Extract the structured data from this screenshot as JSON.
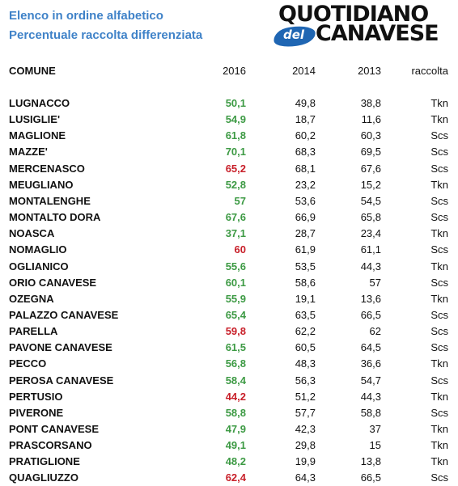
{
  "title": {
    "line1": "Elenco in ordine alfabetico",
    "line2": "Percentuale raccolta differenziata"
  },
  "logo": {
    "top": "QUOTIDIANO",
    "small": "del",
    "bottom": "CANAVESE"
  },
  "colors": {
    "title": "#3f82c8",
    "green": "#3d9a44",
    "red": "#c8202a",
    "logo_blob": "#1f66b3"
  },
  "headers": {
    "comune": "COMUNE",
    "y2016": "2016",
    "y2014": "2014",
    "y2013": "2013",
    "raccolta": "raccolta"
  },
  "rows": [
    {
      "comune": "LUGNACCO",
      "y2016": "50,1",
      "status": "green",
      "y2014": "49,8",
      "y2013": "38,8",
      "raccolta": "Tkn"
    },
    {
      "comune": "LUSIGLIE'",
      "y2016": "54,9",
      "status": "green",
      "y2014": "18,7",
      "y2013": "11,6",
      "raccolta": "Tkn"
    },
    {
      "comune": "MAGLIONE",
      "y2016": "61,8",
      "status": "green",
      "y2014": "60,2",
      "y2013": "60,3",
      "raccolta": "Scs"
    },
    {
      "comune": "MAZZE'",
      "y2016": "70,1",
      "status": "green",
      "y2014": "68,3",
      "y2013": "69,5",
      "raccolta": "Scs"
    },
    {
      "comune": "MERCENASCO",
      "y2016": "65,2",
      "status": "red",
      "y2014": "68,1",
      "y2013": "67,6",
      "raccolta": "Scs"
    },
    {
      "comune": "MEUGLIANO",
      "y2016": "52,8",
      "status": "green",
      "y2014": "23,2",
      "y2013": "15,2",
      "raccolta": "Tkn"
    },
    {
      "comune": "MONTALENGHE",
      "y2016": "57",
      "status": "green",
      "y2014": "53,6",
      "y2013": "54,5",
      "raccolta": "Scs"
    },
    {
      "comune": "MONTALTO DORA",
      "y2016": "67,6",
      "status": "green",
      "y2014": "66,9",
      "y2013": "65,8",
      "raccolta": "Scs"
    },
    {
      "comune": "NOASCA",
      "y2016": "37,1",
      "status": "green",
      "y2014": "28,7",
      "y2013": "23,4",
      "raccolta": "Tkn"
    },
    {
      "comune": "NOMAGLIO",
      "y2016": "60",
      "status": "red",
      "y2014": "61,9",
      "y2013": "61,1",
      "raccolta": "Scs"
    },
    {
      "comune": "OGLIANICO",
      "y2016": "55,6",
      "status": "green",
      "y2014": "53,5",
      "y2013": "44,3",
      "raccolta": "Tkn"
    },
    {
      "comune": "ORIO CANAVESE",
      "y2016": "60,1",
      "status": "green",
      "y2014": "58,6",
      "y2013": "57",
      "raccolta": "Scs"
    },
    {
      "comune": "OZEGNA",
      "y2016": "55,9",
      "status": "green",
      "y2014": "19,1",
      "y2013": "13,6",
      "raccolta": "Tkn"
    },
    {
      "comune": "PALAZZO CANAVESE",
      "y2016": "65,4",
      "status": "green",
      "y2014": "63,5",
      "y2013": "66,5",
      "raccolta": "Scs"
    },
    {
      "comune": "PARELLA",
      "y2016": "59,8",
      "status": "red",
      "y2014": "62,2",
      "y2013": "62",
      "raccolta": "Scs"
    },
    {
      "comune": "PAVONE CANAVESE",
      "y2016": "61,5",
      "status": "green",
      "y2014": "60,5",
      "y2013": "64,5",
      "raccolta": "Scs"
    },
    {
      "comune": "PECCO",
      "y2016": "56,8",
      "status": "green",
      "y2014": "48,3",
      "y2013": "36,6",
      "raccolta": "Tkn"
    },
    {
      "comune": "PEROSA CANAVESE",
      "y2016": "58,4",
      "status": "green",
      "y2014": "56,3",
      "y2013": "54,7",
      "raccolta": "Scs"
    },
    {
      "comune": "PERTUSIO",
      "y2016": "44,2",
      "status": "red",
      "y2014": "51,2",
      "y2013": "44,3",
      "raccolta": "Tkn"
    },
    {
      "comune": "PIVERONE",
      "y2016": "58,8",
      "status": "green",
      "y2014": "57,7",
      "y2013": "58,8",
      "raccolta": "Scs"
    },
    {
      "comune": "PONT CANAVESE",
      "y2016": "47,9",
      "status": "green",
      "y2014": "42,3",
      "y2013": "37",
      "raccolta": "Tkn"
    },
    {
      "comune": "PRASCORSANO",
      "y2016": "49,1",
      "status": "green",
      "y2014": "29,8",
      "y2013": "15",
      "raccolta": "Tkn"
    },
    {
      "comune": "PRATIGLIONE",
      "y2016": "48,2",
      "status": "green",
      "y2014": "19,9",
      "y2013": "13,8",
      "raccolta": "Tkn"
    },
    {
      "comune": "QUAGLIUZZO",
      "y2016": "62,4",
      "status": "red",
      "y2014": "64,3",
      "y2013": "66,5",
      "raccolta": "Scs"
    }
  ]
}
